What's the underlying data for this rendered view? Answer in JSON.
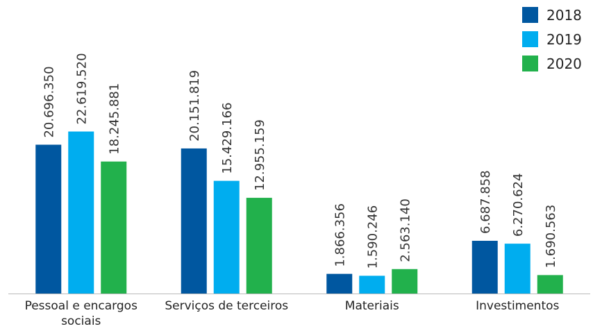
{
  "chart_data": {
    "type": "bar",
    "categories": [
      "Pessoal e encargos sociais",
      "Serviços de terceiros",
      "Materiais",
      "Investimentos"
    ],
    "series": [
      {
        "name": "2018",
        "color": "#0057a0",
        "values": [
          20696350,
          20151819,
          1866356,
          6687858
        ],
        "value_labels": [
          "20.696.350",
          "20.151.819",
          "1.866.356",
          "6.687.858"
        ]
      },
      {
        "name": "2019",
        "color": "#00adef",
        "values": [
          22619520,
          15429166,
          1590246,
          6270624
        ],
        "value_labels": [
          "22.619.520",
          "15.429.166",
          "1.590.246",
          "6.270.624"
        ]
      },
      {
        "name": "2020",
        "color": "#22b14c",
        "values": [
          18245881,
          12955159,
          2563140,
          1690563
        ],
        "value_labels": [
          "18.245.881",
          "12.955.159",
          "2.563.140",
          "1.690.563"
        ]
      }
    ],
    "ylim": [
      -1000000,
      25000000
    ],
    "legend": "top-right"
  }
}
